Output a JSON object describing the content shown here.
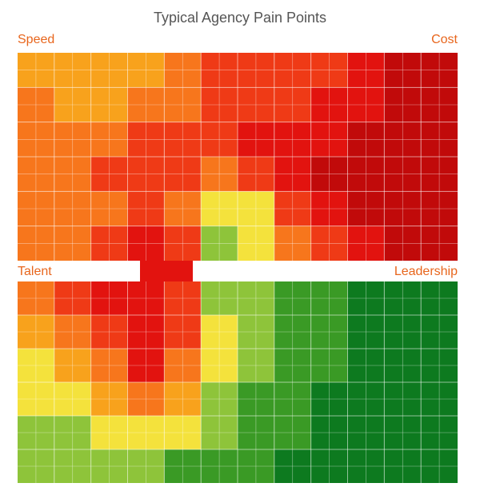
{
  "chart_data": {
    "type": "heatmap",
    "title": "Typical Agency Pain Points",
    "quadrants": [
      {
        "label": "Speed",
        "position": "top-left"
      },
      {
        "label": "Cost",
        "position": "top-right"
      },
      {
        "label": "Talent",
        "position": "bottom-left"
      },
      {
        "label": "Leadership",
        "position": "bottom-right"
      }
    ],
    "grid": {
      "rows": 12,
      "cols": 12,
      "legend": "0=dark green, 1=green, 2=light green, 3=yellow, 4=orange-yellow, 5=orange, 6=red-orange, 7=red, 8=dark red",
      "intensity": [
        [
          4,
          4,
          4,
          4,
          5,
          6,
          6,
          6,
          6,
          7,
          8,
          8
        ],
        [
          5,
          4,
          4,
          5,
          5,
          6,
          6,
          6,
          7,
          7,
          8,
          8
        ],
        [
          5,
          5,
          5,
          6,
          6,
          6,
          7,
          7,
          7,
          8,
          8,
          8
        ],
        [
          5,
          5,
          6,
          6,
          6,
          5,
          6,
          7,
          8,
          8,
          8,
          8
        ],
        [
          5,
          5,
          5,
          6,
          5,
          3,
          3,
          6,
          7,
          8,
          8,
          8
        ],
        [
          5,
          5,
          6,
          7,
          6,
          2,
          3,
          5,
          6,
          7,
          8,
          8
        ],
        [
          5,
          6,
          7,
          7,
          6,
          2,
          2,
          1,
          1,
          0,
          0,
          0
        ],
        [
          4,
          5,
          6,
          7,
          6,
          3,
          2,
          1,
          1,
          0,
          0,
          0
        ],
        [
          3,
          4,
          5,
          7,
          5,
          3,
          2,
          1,
          1,
          0,
          0,
          0
        ],
        [
          3,
          3,
          4,
          5,
          4,
          2,
          1,
          1,
          0,
          0,
          0,
          0
        ],
        [
          2,
          2,
          3,
          3,
          3,
          2,
          1,
          1,
          0,
          0,
          0,
          0
        ],
        [
          2,
          2,
          2,
          2,
          1,
          1,
          1,
          0,
          0,
          0,
          0,
          0
        ]
      ]
    },
    "colors": {
      "scale": [
        "#0d7a1f",
        "#3a9a25",
        "#8ec43a",
        "#f4e23c",
        "#f8a21c",
        "#f7761c",
        "#ef3a16",
        "#e2130f",
        "#c10a0a"
      ],
      "label_color": "#e8661d",
      "title_color": "#555555",
      "grid_line": "#ffffff"
    }
  }
}
